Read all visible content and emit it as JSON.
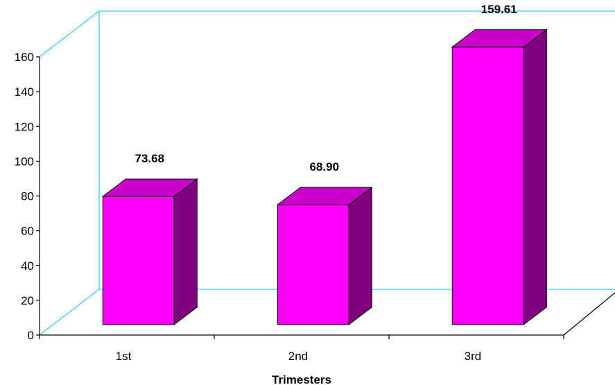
{
  "chart_data": {
    "type": "bar",
    "style": "3d",
    "categories": [
      "1st",
      "2nd",
      "3rd"
    ],
    "values": [
      73.68,
      68.9,
      159.61
    ],
    "value_labels": [
      "73.68",
      "68.90",
      "159.61"
    ],
    "title": "",
    "xlabel": "Trimesters",
    "ylabel": "",
    "ylim": [
      0,
      160
    ],
    "yticks": [
      "0",
      "20",
      "40",
      "60",
      "80",
      "100",
      "120",
      "140",
      "160"
    ],
    "grid": false,
    "legend": "none",
    "colors": {
      "bar_front": "#ff00ff",
      "bar_side": "#800080",
      "bar_top": "#cc00cc",
      "wall_lines": "#33ccff",
      "axis": "#000000"
    }
  }
}
